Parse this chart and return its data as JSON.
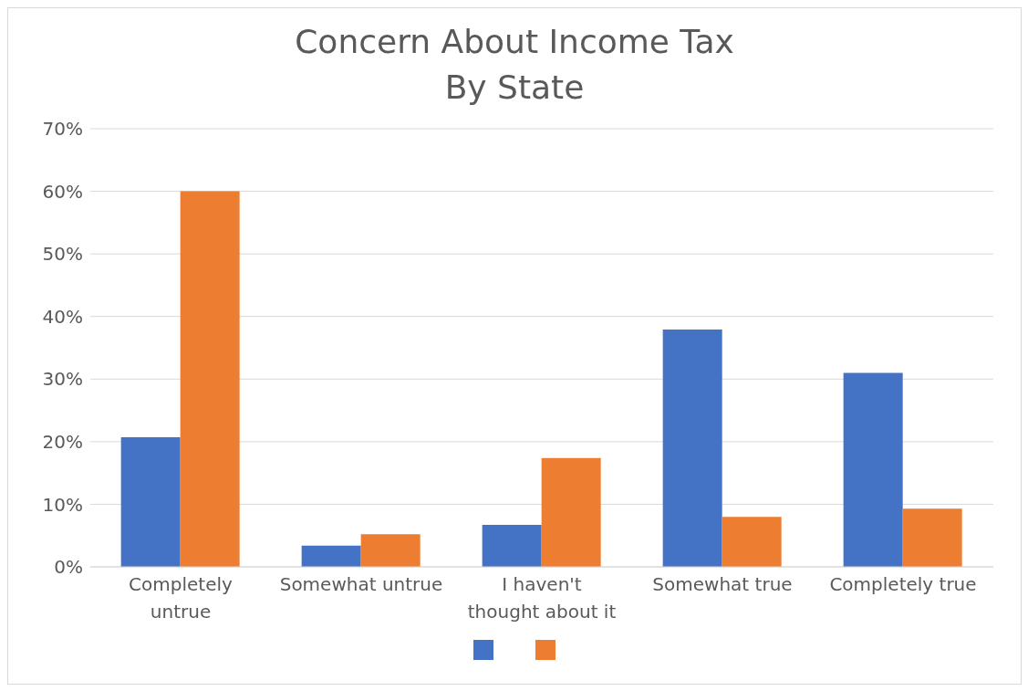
{
  "chart_data": {
    "type": "bar",
    "title": "Concern About Income Tax",
    "subtitle": "By State",
    "categories": [
      "Completely untrue",
      "Somewhat untrue",
      "I haven't thought about it",
      "Somewhat true",
      "Completely true"
    ],
    "series": [
      {
        "color": "#4472c4",
        "values": [
          20.7,
          3.4,
          6.7,
          37.9,
          31
        ]
      },
      {
        "color": "#ed7d31",
        "values": [
          60,
          5.2,
          17.4,
          8,
          9.3
        ]
      }
    ],
    "ylim": [
      0,
      70
    ],
    "yticks": [
      {
        "value": 0,
        "label": "0%"
      },
      {
        "value": 10,
        "label": "10%"
      },
      {
        "value": 20,
        "label": "20%"
      },
      {
        "value": 30,
        "label": "30%"
      },
      {
        "value": 40,
        "label": "40%"
      },
      {
        "value": 50,
        "label": "50%"
      },
      {
        "value": 60,
        "label": "60%"
      },
      {
        "value": 70,
        "label": "70%"
      }
    ],
    "grid": "y"
  }
}
